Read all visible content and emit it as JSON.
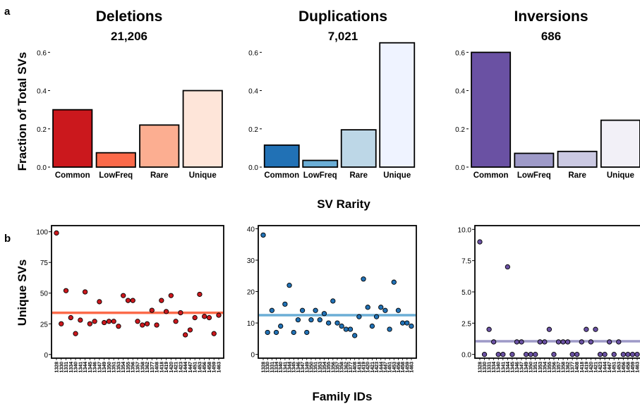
{
  "figure": {
    "panel_a_label": "a",
    "panel_b_label": "b",
    "a_ylabel": "Fraction of Total SVs",
    "a_xlabel": "SV Rarity",
    "b_ylabel": "Unique SVs",
    "b_xlabel": "Family IDs"
  },
  "family_ids": [
    "1328",
    "1330",
    "1331",
    "1334",
    "1340",
    "1341",
    "1344",
    "1345",
    "1346",
    "1347",
    "1349",
    "1350",
    "1351",
    "1353",
    "1354",
    "1355",
    "1356",
    "1357",
    "1358",
    "1362",
    "1377",
    "1408",
    "1418",
    "1419",
    "1420",
    "1421",
    "1423",
    "1444",
    "1447",
    "1451",
    "1453",
    "1456",
    "1458",
    "1459",
    "1463"
  ],
  "chart_data": [
    {
      "type": "bar",
      "panel": "a",
      "title": "Deletions",
      "subtitle": "21,206",
      "categories": [
        "Common",
        "LowFreq",
        "Rare",
        "Unique"
      ],
      "values": [
        0.3,
        0.075,
        0.22,
        0.4
      ],
      "colors": [
        "#cb181d",
        "#fb6a4a",
        "#fcae91",
        "#fee5d9"
      ],
      "ylim": [
        0,
        0.66
      ],
      "yticks": [
        0.0,
        0.2,
        0.4,
        0.6
      ],
      "ytick_labels": [
        "0.0",
        "0.2",
        "0.4",
        "0.6"
      ],
      "ylabel": "Fraction of Total SVs",
      "xlabel": "SV Rarity"
    },
    {
      "type": "bar",
      "panel": "a",
      "title": "Duplications",
      "subtitle": "7,021",
      "categories": [
        "Common",
        "LowFreq",
        "Rare",
        "Unique"
      ],
      "values": [
        0.115,
        0.035,
        0.195,
        0.65
      ],
      "colors": [
        "#2171b5",
        "#6baed6",
        "#bdd7e7",
        "#eff3ff"
      ],
      "ylim": [
        0,
        0.66
      ],
      "yticks": [
        0.0,
        0.2,
        0.4,
        0.6
      ],
      "ytick_labels": [
        "0.0",
        "0.2",
        "0.4",
        "0.6"
      ]
    },
    {
      "type": "bar",
      "panel": "a",
      "title": "Inversions",
      "subtitle": "686",
      "categories": [
        "Common",
        "LowFreq",
        "Rare",
        "Unique"
      ],
      "values": [
        0.6,
        0.072,
        0.082,
        0.245
      ],
      "colors": [
        "#6a51a3",
        "#9e9ac8",
        "#cbc9e2",
        "#f2f0f7"
      ],
      "ylim": [
        0,
        0.66
      ],
      "yticks": [
        0.0,
        0.2,
        0.4,
        0.6
      ],
      "ytick_labels": [
        "0.0",
        "0.2",
        "0.4",
        "0.6"
      ]
    },
    {
      "type": "scatter",
      "panel": "b",
      "series": "Deletions",
      "y": [
        99,
        25,
        52,
        30,
        17,
        28,
        51,
        25,
        27,
        43,
        26,
        27,
        27,
        23,
        48,
        44,
        44,
        27,
        24,
        25,
        36,
        24,
        44,
        35,
        48,
        27,
        34,
        16,
        20,
        30,
        49,
        31,
        30,
        17,
        32
      ],
      "hline": 34,
      "point_color": "#cb181d",
      "line_color": "#fb6a4a",
      "ylim": [
        -3,
        105
      ],
      "yticks": [
        0,
        25,
        50,
        75,
        100
      ],
      "ytick_labels": [
        "0",
        "25",
        "50",
        "75",
        "100"
      ],
      "ylabel": "Unique SVs",
      "xlabel": "Family IDs"
    },
    {
      "type": "scatter",
      "panel": "b",
      "series": "Duplications",
      "y": [
        38,
        7,
        14,
        7,
        9,
        16,
        22,
        7,
        11,
        14,
        7,
        11,
        14,
        11,
        13,
        10,
        17,
        10,
        9,
        8,
        8,
        6,
        12,
        24,
        15,
        9,
        12,
        15,
        14,
        8,
        23,
        14,
        10,
        10,
        9
      ],
      "hline": 12.5,
      "point_color": "#2171b5",
      "line_color": "#6baed6",
      "ylim": [
        -1.2,
        41
      ],
      "yticks": [
        0,
        10,
        20,
        30,
        40
      ],
      "ytick_labels": [
        "0",
        "10",
        "20",
        "30",
        "40"
      ]
    },
    {
      "type": "scatter",
      "panel": "b",
      "series": "Inversions",
      "y": [
        9,
        0,
        2,
        1,
        0,
        0,
        7,
        0,
        1,
        1,
        0,
        0,
        0,
        1,
        1,
        2,
        0,
        1,
        1,
        1,
        0,
        0,
        1,
        2,
        1,
        2,
        0,
        0,
        1,
        0,
        1,
        0,
        0,
        0,
        0
      ],
      "hline": 1.05,
      "point_color": "#6a51a3",
      "line_color": "#9e9ac8",
      "ylim": [
        -0.3,
        10.3
      ],
      "yticks": [
        0.0,
        2.5,
        5.0,
        7.5,
        10.0
      ],
      "ytick_labels": [
        "0.0",
        "2.5",
        "5.0",
        "7.5",
        "10.0"
      ]
    }
  ]
}
